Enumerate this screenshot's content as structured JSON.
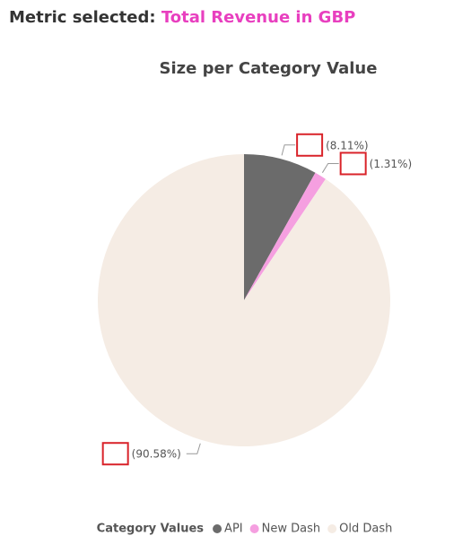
{
  "header": {
    "label": "Metric selected:",
    "value": "Total Revenue in GBP"
  },
  "chart_data": {
    "type": "pie",
    "title": "Size per Category Value",
    "categories": [
      "API",
      "New Dash",
      "Old Dash"
    ],
    "values": [
      8.11,
      1.31,
      90.58
    ],
    "value_labels": [
      "(8.11%)",
      "(1.31%)",
      "(90.58%)"
    ],
    "colors": [
      "#6b6b6b",
      "#f59fe0",
      "#f5ece4"
    ],
    "legend_title": "Category Values",
    "legend": "bottom"
  }
}
